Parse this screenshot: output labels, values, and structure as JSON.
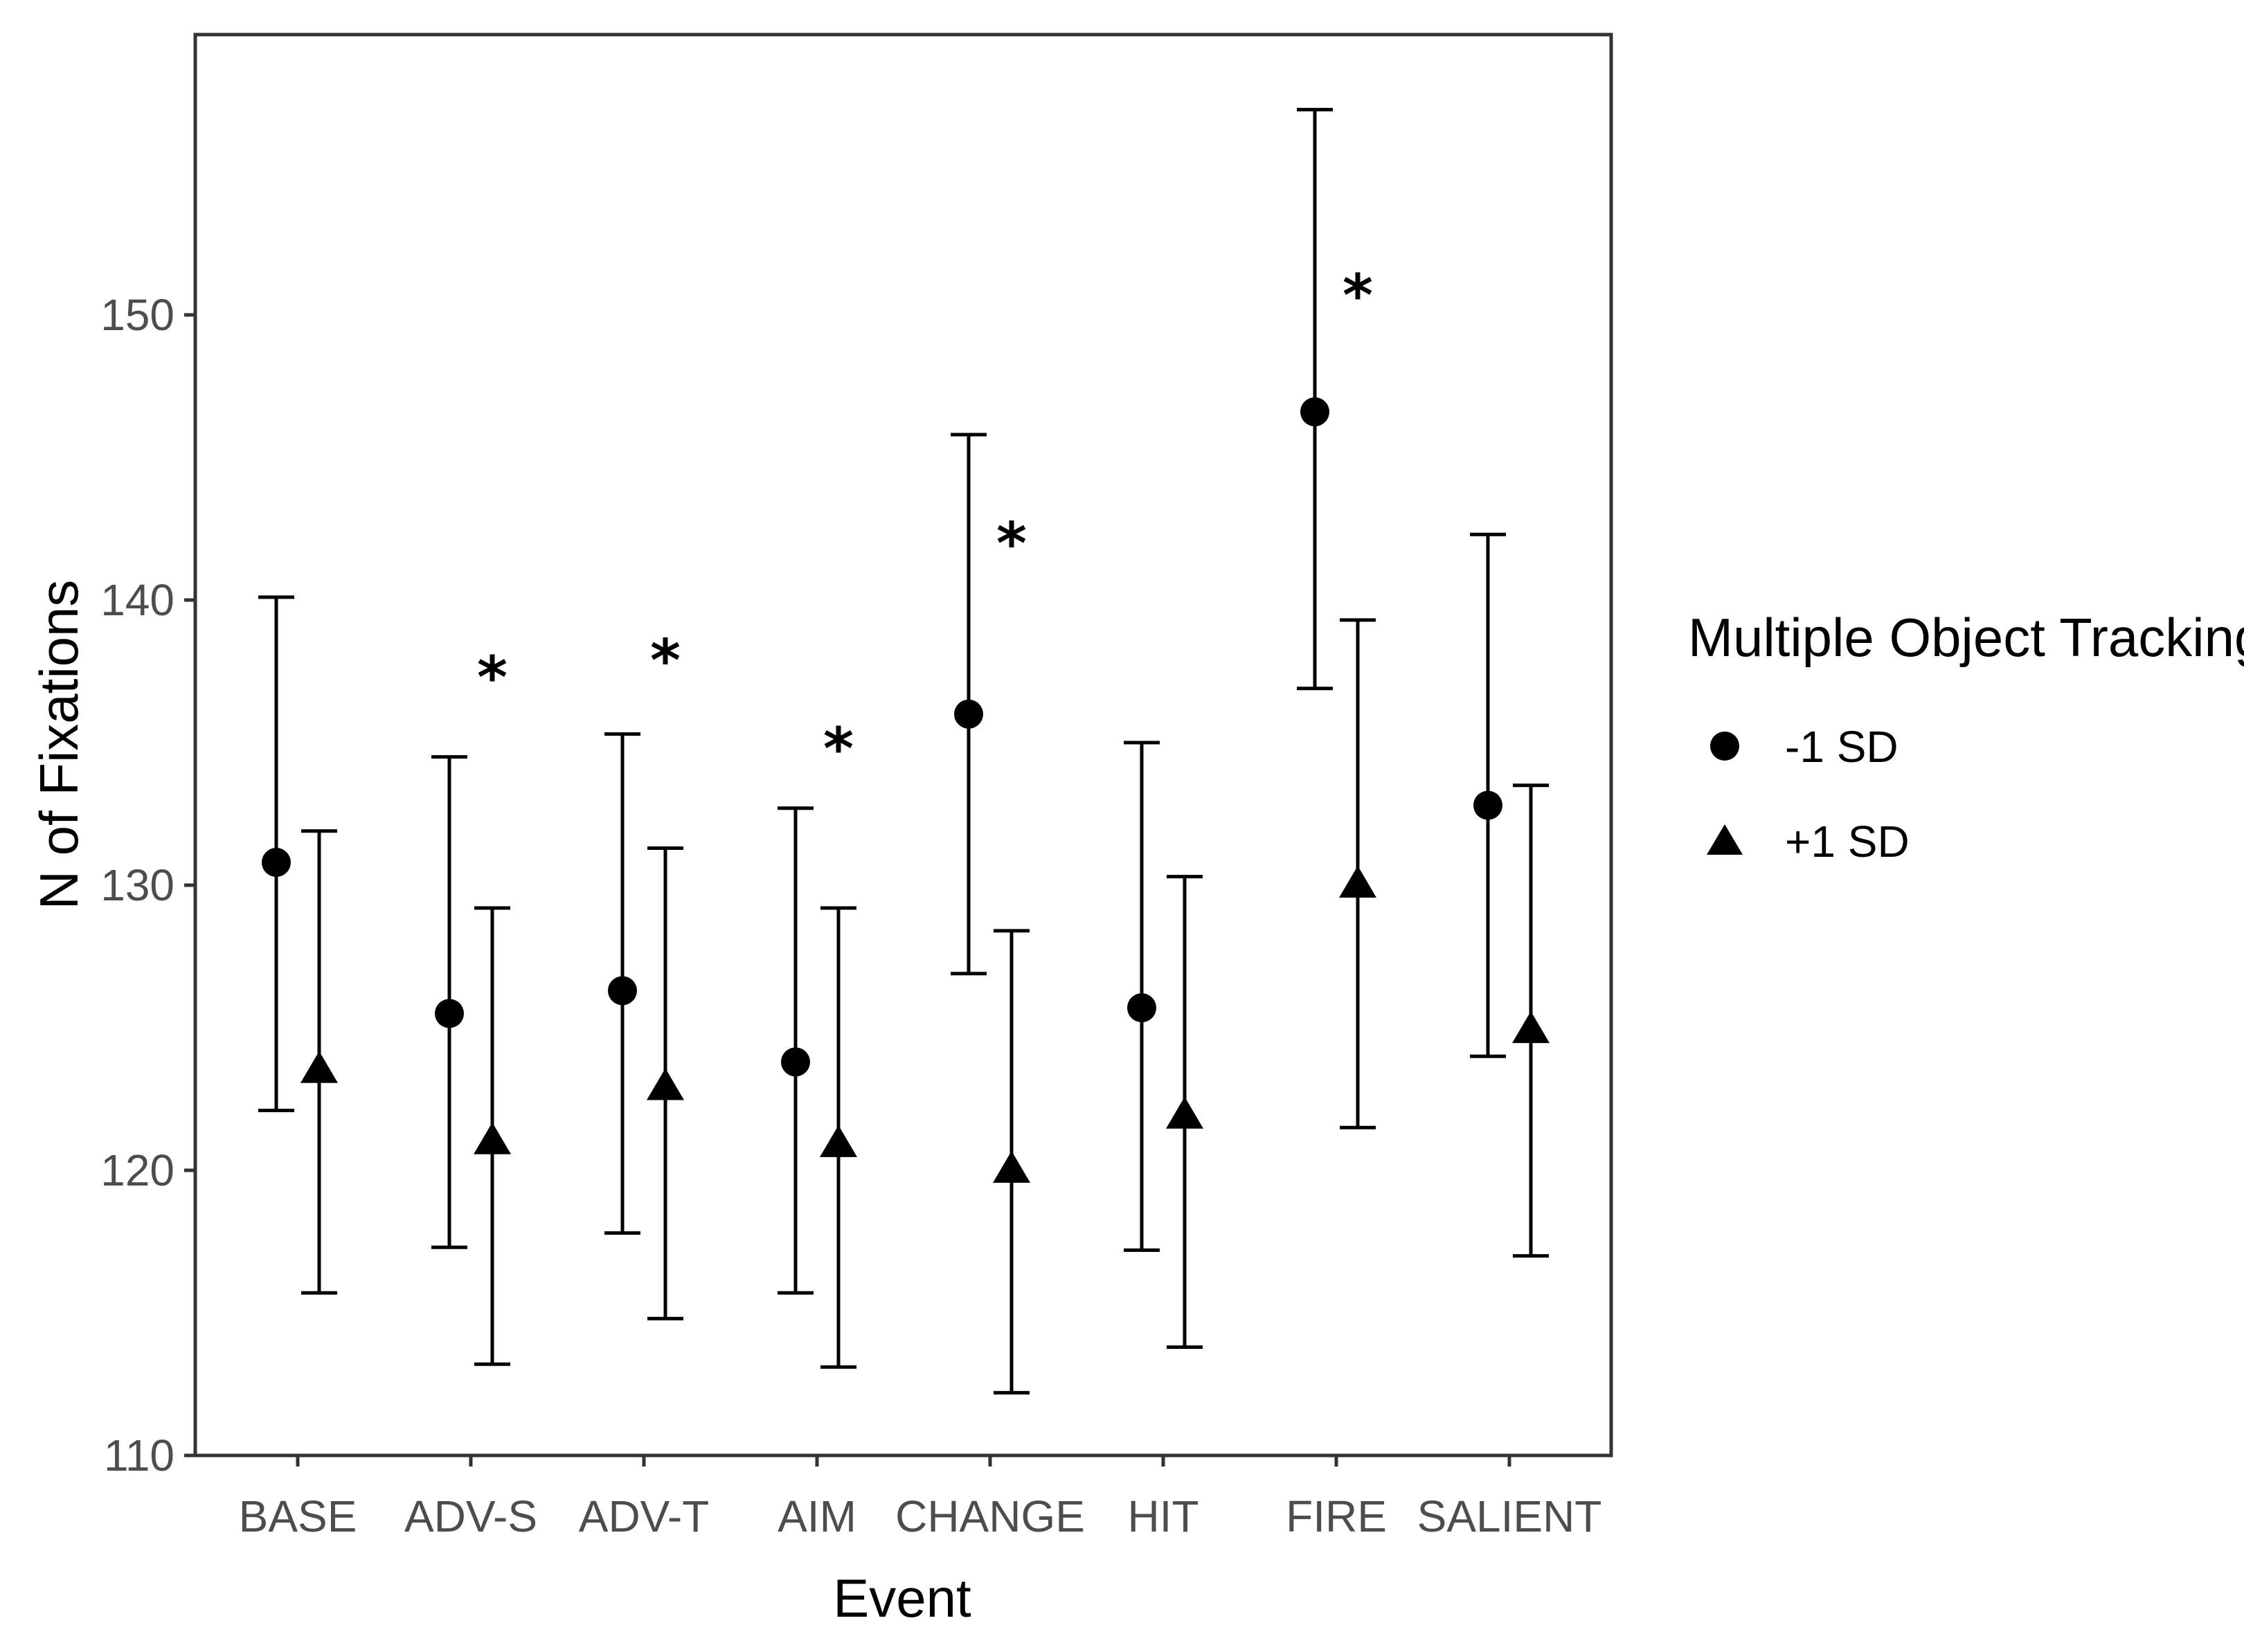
{
  "chart_data": {
    "type": "scatter",
    "subtype": "point-with-error-bars",
    "title": "",
    "xlabel": "Event",
    "ylabel": "N of Fixations",
    "ylim": [
      110,
      160
    ],
    "yticks": [
      110,
      120,
      130,
      140,
      150
    ],
    "categories": [
      "BASE",
      "ADV-S",
      "ADV-T",
      "AIM",
      "CHANGE",
      "HIT",
      "FIRE",
      "SALIENT"
    ],
    "legend": {
      "title": "Multiple Object Tracking",
      "position": "right"
    },
    "series": [
      {
        "name": "-1 SD",
        "marker": "circle",
        "values": [
          130.8,
          125.5,
          126.3,
          123.8,
          136.0,
          125.7,
          146.6,
          132.8
        ],
        "lower": [
          122.1,
          117.3,
          117.8,
          115.7,
          126.9,
          117.2,
          136.9,
          124.0
        ],
        "upper": [
          140.1,
          134.5,
          135.3,
          132.7,
          145.8,
          135.0,
          157.2,
          142.3
        ]
      },
      {
        "name": "+1 SD",
        "marker": "triangle",
        "values": [
          123.5,
          121.0,
          122.9,
          120.9,
          120.0,
          121.9,
          130.0,
          124.9
        ],
        "lower": [
          115.7,
          113.2,
          114.8,
          113.1,
          112.2,
          113.8,
          121.5,
          117.0
        ],
        "upper": [
          131.9,
          129.2,
          131.3,
          129.2,
          128.4,
          130.3,
          139.3,
          133.5
        ]
      }
    ],
    "significance": {
      "symbol": "*",
      "categories": [
        "ADV-S",
        "ADV-T",
        "AIM",
        "CHANGE",
        "FIRE"
      ],
      "y": [
        137.5,
        138.1,
        135.0,
        142.2,
        150.9
      ]
    },
    "grid": false,
    "colors": {
      "marker": "#000000",
      "axis": "#333333",
      "tick_text": "#4d4d4d"
    }
  }
}
